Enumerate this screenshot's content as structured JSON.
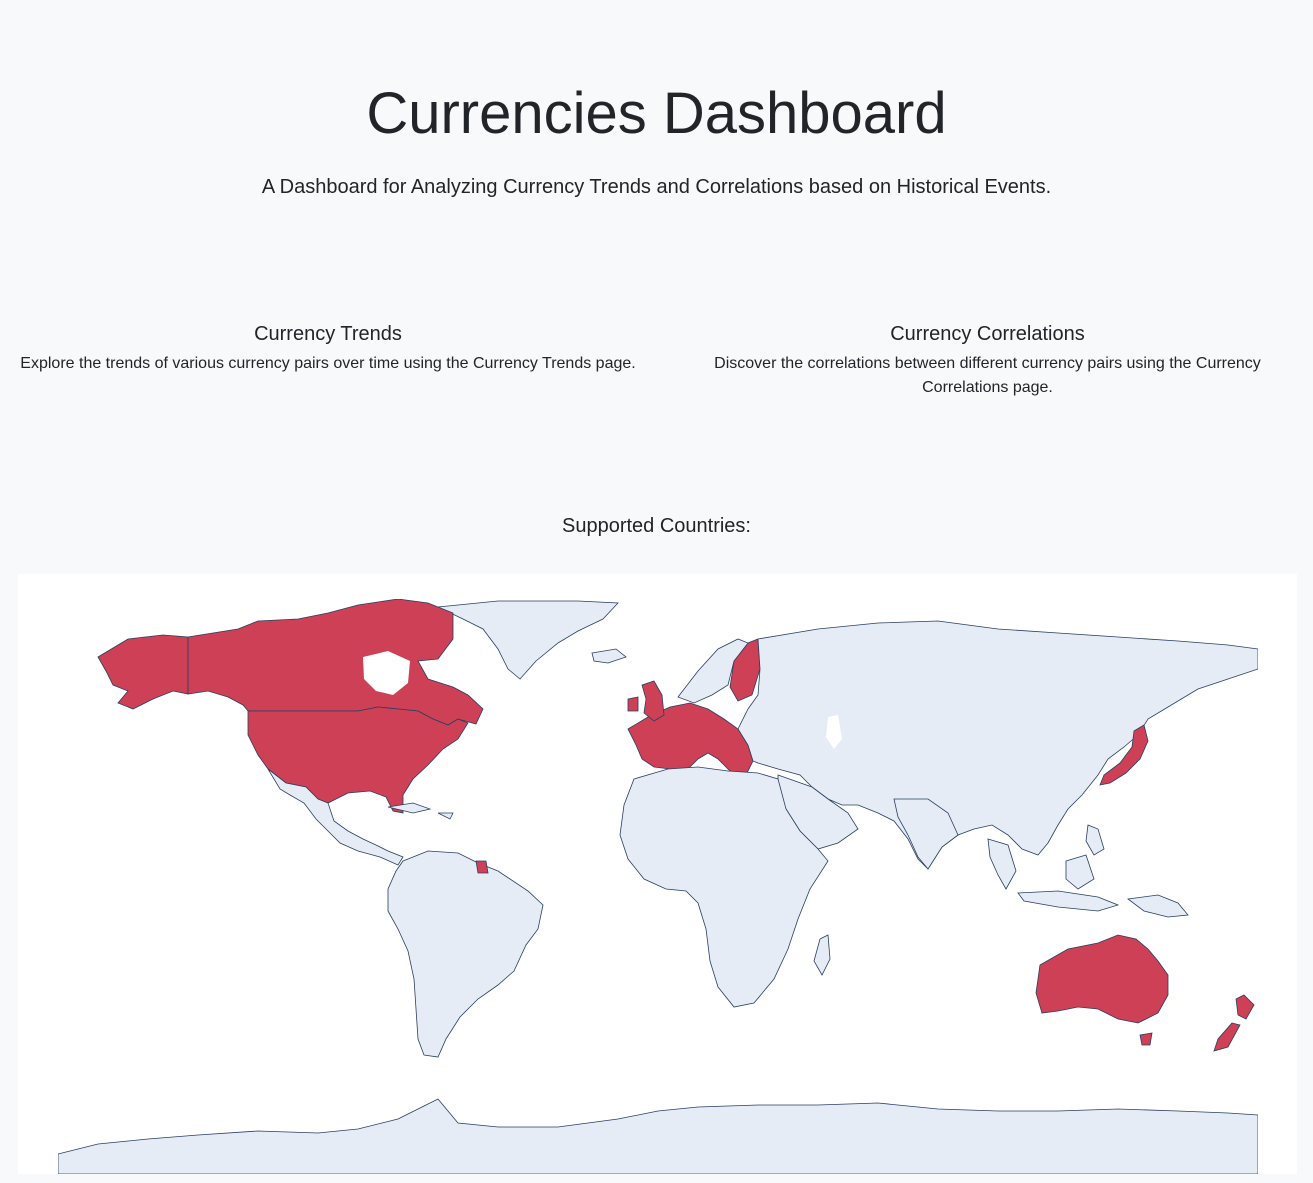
{
  "header": {
    "title": "Currencies Dashboard",
    "subtitle": "A Dashboard for Analyzing Currency Trends and Correlations based on Historical Events."
  },
  "cards": [
    {
      "title": "Currency Trends",
      "description": "Explore the trends of various currency pairs over time using the Currency Trends page."
    },
    {
      "title": "Currency Correlations",
      "description": "Discover the correlations between different currency pairs using the Currency Correlations page."
    }
  ],
  "map": {
    "label": "Supported Countries:",
    "colors": {
      "highlight": "#cd4055",
      "land": "#e5ecf6",
      "border": "#2a3f5f",
      "ocean": "#ffffff"
    }
  }
}
